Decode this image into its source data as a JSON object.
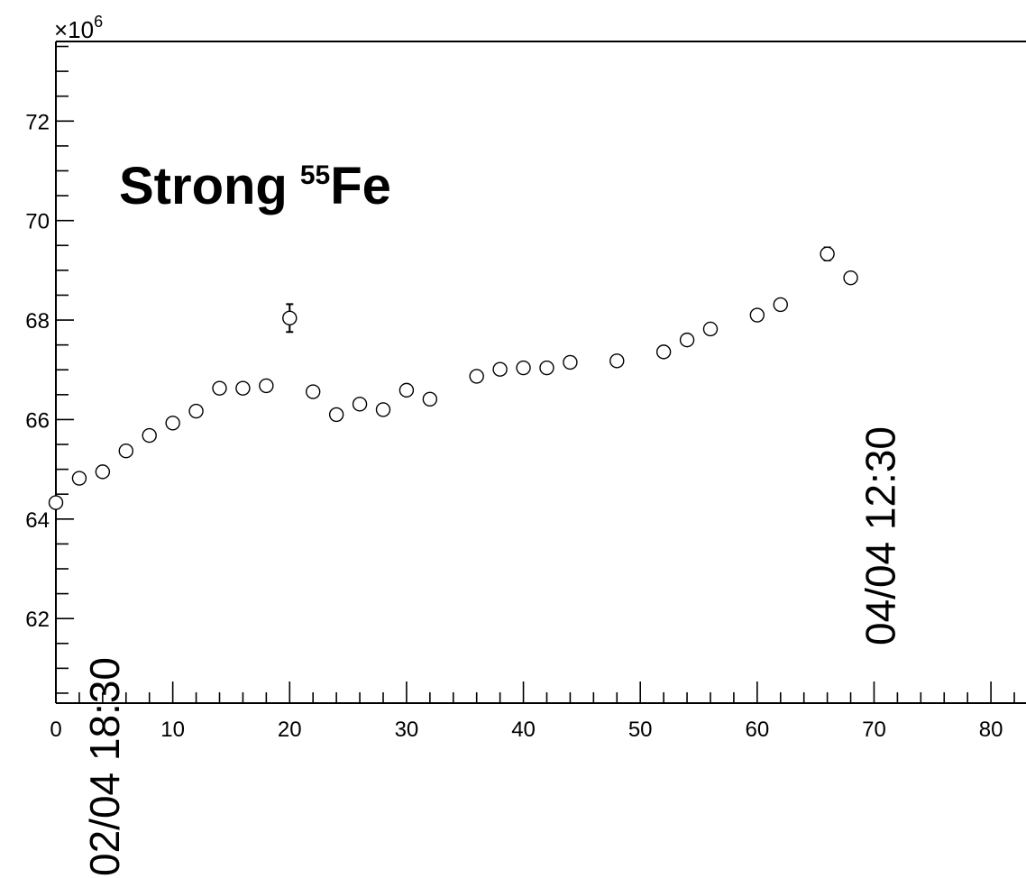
{
  "chart_data": {
    "type": "scatter",
    "title": "Strong",
    "title_superscript": "55",
    "title_suffix": "Fe",
    "y_multiplier": "×10",
    "y_multiplier_exponent": "6",
    "xlim": [
      0,
      83
    ],
    "ylim": [
      60.3,
      73.6
    ],
    "x_ticks": [
      0,
      10,
      20,
      30,
      40,
      50,
      60,
      70,
      80
    ],
    "y_ticks": [
      62,
      64,
      66,
      68,
      70,
      72
    ],
    "grid": false,
    "marker": "open-circle",
    "points": [
      {
        "x": 0,
        "y": 64.33,
        "err": 0
      },
      {
        "x": 2,
        "y": 64.82,
        "err": 0
      },
      {
        "x": 4,
        "y": 64.95,
        "err": 0
      },
      {
        "x": 6,
        "y": 65.37,
        "err": 0
      },
      {
        "x": 8,
        "y": 65.68,
        "err": 0
      },
      {
        "x": 10,
        "y": 65.93,
        "err": 0
      },
      {
        "x": 12,
        "y": 66.17,
        "err": 0
      },
      {
        "x": 14,
        "y": 66.63,
        "err": 0
      },
      {
        "x": 16,
        "y": 66.63,
        "err": 0
      },
      {
        "x": 18,
        "y": 66.68,
        "err": 0
      },
      {
        "x": 20,
        "y": 68.04,
        "err": 0.28
      },
      {
        "x": 22,
        "y": 66.56,
        "err": 0
      },
      {
        "x": 24,
        "y": 66.1,
        "err": 0
      },
      {
        "x": 26,
        "y": 66.31,
        "err": 0
      },
      {
        "x": 28,
        "y": 66.2,
        "err": 0
      },
      {
        "x": 30,
        "y": 66.59,
        "err": 0
      },
      {
        "x": 32,
        "y": 66.41,
        "err": 0
      },
      {
        "x": 36,
        "y": 66.87,
        "err": 0
      },
      {
        "x": 38,
        "y": 67.01,
        "err": 0
      },
      {
        "x": 40,
        "y": 67.04,
        "err": 0
      },
      {
        "x": 42,
        "y": 67.04,
        "err": 0
      },
      {
        "x": 44,
        "y": 67.15,
        "err": 0
      },
      {
        "x": 48,
        "y": 67.18,
        "err": 0
      },
      {
        "x": 52,
        "y": 67.36,
        "err": 0
      },
      {
        "x": 54,
        "y": 67.6,
        "err": 0
      },
      {
        "x": 56,
        "y": 67.82,
        "err": 0
      },
      {
        "x": 60,
        "y": 68.1,
        "err": 0
      },
      {
        "x": 62,
        "y": 68.31,
        "err": 0
      },
      {
        "x": 66,
        "y": 69.33,
        "err": 0.13
      },
      {
        "x": 68,
        "y": 68.85,
        "err": 0
      }
    ],
    "annotations": [
      {
        "text": "02/04 18:30",
        "x": 4
      },
      {
        "text": "04/04 12:30",
        "x": 70
      }
    ]
  }
}
